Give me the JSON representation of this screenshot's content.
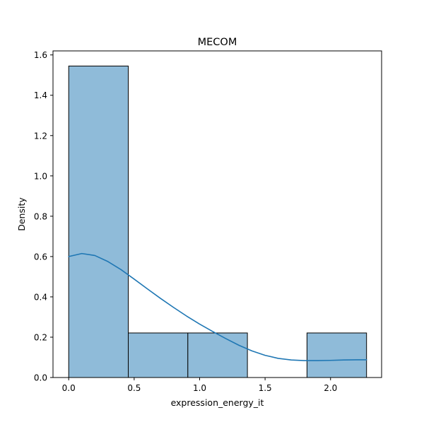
{
  "chart_data": {
    "type": "bar",
    "title": "MECOM",
    "xlabel": "expression_energy_it",
    "ylabel": "Density",
    "xlim": [
      -0.12,
      2.39
    ],
    "ylim": [
      0.0,
      1.62
    ],
    "xticks": [
      0.0,
      0.5,
      1.0,
      1.5,
      2.0
    ],
    "xtick_labels": [
      "0.0",
      "0.5",
      "1.0",
      "1.5",
      "2.0"
    ],
    "yticks": [
      0.0,
      0.2,
      0.4,
      0.6,
      0.8,
      1.0,
      1.2,
      1.4,
      1.6
    ],
    "ytick_labels": [
      "0.0",
      "0.2",
      "0.4",
      "0.6",
      "0.8",
      "1.0",
      "1.2",
      "1.4",
      "1.6"
    ],
    "bins": [
      {
        "x0": 0.0,
        "x1": 0.455,
        "value": 1.545
      },
      {
        "x0": 0.455,
        "x1": 0.91,
        "value": 0.221
      },
      {
        "x0": 0.91,
        "x1": 1.365,
        "value": 0.221
      },
      {
        "x0": 1.365,
        "x1": 1.82,
        "value": 0.0
      },
      {
        "x0": 1.82,
        "x1": 2.275,
        "value": 0.221
      }
    ],
    "kde": {
      "x": [
        0.0,
        0.1,
        0.2,
        0.3,
        0.4,
        0.5,
        0.6,
        0.7,
        0.8,
        0.9,
        1.0,
        1.1,
        1.2,
        1.3,
        1.4,
        1.5,
        1.6,
        1.7,
        1.8,
        1.9,
        2.0,
        2.1,
        2.2,
        2.275
      ],
      "y": [
        0.6,
        0.615,
        0.605,
        0.575,
        0.535,
        0.488,
        0.44,
        0.393,
        0.348,
        0.305,
        0.265,
        0.228,
        0.193,
        0.16,
        0.132,
        0.11,
        0.095,
        0.087,
        0.084,
        0.084,
        0.085,
        0.087,
        0.088,
        0.088
      ]
    },
    "colors": {
      "bar_fill": "#8fbbd9",
      "bar_edge": "#000000",
      "kde_line": "#1f77b4"
    },
    "grid": false,
    "legend": "none"
  }
}
